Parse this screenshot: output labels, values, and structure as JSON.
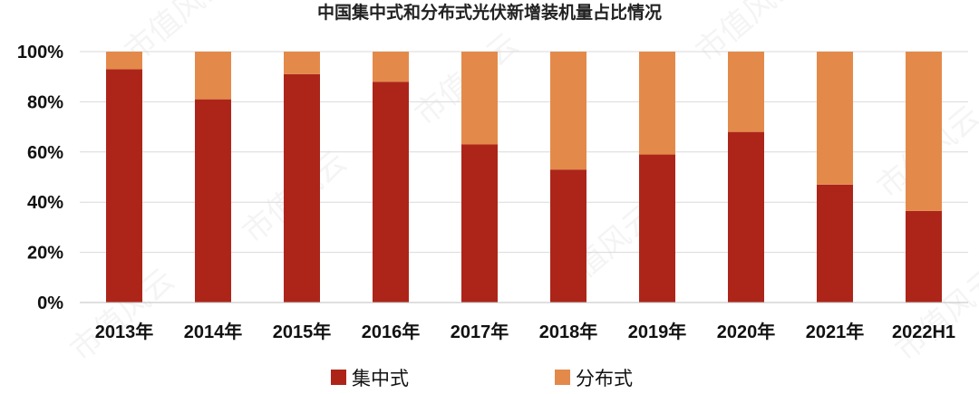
{
  "chart_data": {
    "type": "bar",
    "stacked": true,
    "title": "中国集中式和分布式光伏新增装机量占比情况",
    "categories": [
      "2013年",
      "2014年",
      "2015年",
      "2016年",
      "2017年",
      "2018年",
      "2019年",
      "2020年",
      "2021年",
      "2022H1"
    ],
    "series": [
      {
        "name": "集中式",
        "color": "#ad2519",
        "values": [
          93,
          81,
          91,
          88,
          63,
          53,
          59,
          68,
          47,
          36.5
        ]
      },
      {
        "name": "分布式",
        "color": "#e38a4a",
        "values": [
          7,
          19,
          9,
          12,
          37,
          47,
          41,
          32,
          53,
          63.5
        ]
      }
    ],
    "ylim": [
      0,
      100
    ],
    "yticks": [
      "0%",
      "20%",
      "40%",
      "60%",
      "80%",
      "100%"
    ],
    "grid": true,
    "legend": "bottom",
    "xlabel": "",
    "ylabel": "",
    "watermark": "市值风云"
  }
}
